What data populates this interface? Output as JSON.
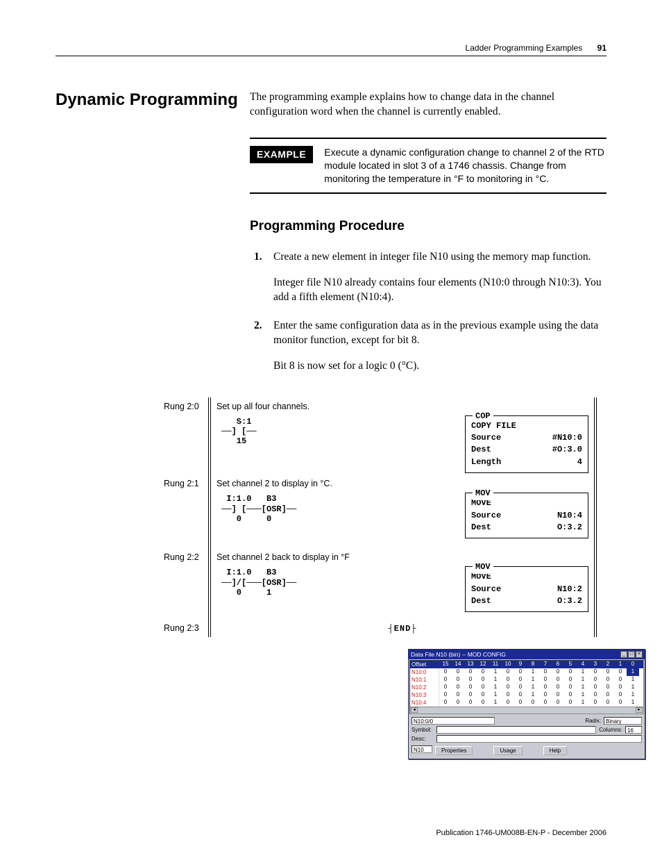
{
  "header": {
    "chapter": "Ladder Programming Examples",
    "page_number": "91"
  },
  "section_title": "Dynamic Programming",
  "intro": "The programming example explains how to change data in the channel configuration word when the channel is currently enabled.",
  "example": {
    "label": "EXAMPLE",
    "text": "Execute a dynamic configuration change to channel 2 of the RTD module located in slot 3 of a 1746 chassis. Change from monitoring the temperature in °F to monitoring in °C."
  },
  "procedure": {
    "title": "Programming Procedure",
    "steps": [
      {
        "text": "Create a new element in integer file N10 using the memory map function.",
        "detail": "Integer file N10 already contains four elements (N10:0 through N10:3). You add a fifth element (N10:4)."
      },
      {
        "text": "Enter the same configuration data as in the previous example using the data monitor function, except for bit 8.",
        "detail": "Bit 8 is now set for a logic 0 (°C)."
      }
    ]
  },
  "ladder": {
    "rungs": [
      {
        "label": "Rung 2:0",
        "comment": "Set up all four channels.",
        "contacts": "    S:1\n ──] [──\n    15",
        "instr": {
          "mnemonic": "COP",
          "title": "COPY FILE",
          "rows": [
            {
              "k": "Source",
              "v": "#N10:0"
            },
            {
              "k": "Dest",
              "v": "#O:3.0"
            },
            {
              "k": "Length",
              "v": "4"
            }
          ]
        }
      },
      {
        "label": "Rung 2:1",
        "comment": "Set channel 2 to display in °C.",
        "contacts": "  I:1.0   B3\n ──] [───[OSR]──\n    0     0",
        "instr": {
          "mnemonic": "MOV",
          "title": "MOVE",
          "rows": [
            {
              "k": "Source",
              "v": "N10:4"
            },
            {
              "k": "",
              "v": ""
            },
            {
              "k": "Dest",
              "v": "O:3.2"
            }
          ]
        }
      },
      {
        "label": "Rung 2:2",
        "comment": "Set channel 2 back to display in °F",
        "contacts": "  I:1.0   B3\n ──]/[───[OSR]──\n    0     1",
        "instr": {
          "mnemonic": "MOV",
          "title": "MOVE",
          "rows": [
            {
              "k": "Source",
              "v": "N10:2"
            },
            {
              "k": "",
              "v": ""
            },
            {
              "k": "Dest",
              "v": "O:3.2"
            }
          ]
        }
      }
    ],
    "end_label": "Rung 2:3",
    "end_text": "┤END├"
  },
  "datafile": {
    "title": "Data File N10 (bin) -- MOD CONFIG",
    "offset_header": "Offset",
    "bit_headers": [
      "15",
      "14",
      "13",
      "12",
      "11",
      "10",
      "9",
      "8",
      "7",
      "6",
      "5",
      "4",
      "3",
      "2",
      "1",
      "0"
    ],
    "rows": [
      {
        "offset": "N10:0",
        "bits": [
          "0",
          "0",
          "0",
          "0",
          "1",
          "0",
          "0",
          "1",
          "0",
          "0",
          "0",
          "1",
          "0",
          "0",
          "0",
          "1"
        ]
      },
      {
        "offset": "N10:1",
        "bits": [
          "0",
          "0",
          "0",
          "0",
          "1",
          "0",
          "0",
          "1",
          "0",
          "0",
          "0",
          "1",
          "0",
          "0",
          "0",
          "1"
        ]
      },
      {
        "offset": "N10:2",
        "bits": [
          "0",
          "0",
          "0",
          "0",
          "1",
          "0",
          "0",
          "1",
          "0",
          "0",
          "0",
          "1",
          "0",
          "0",
          "0",
          "1"
        ]
      },
      {
        "offset": "N10:3",
        "bits": [
          "0",
          "0",
          "0",
          "0",
          "1",
          "0",
          "0",
          "1",
          "0",
          "0",
          "0",
          "1",
          "0",
          "0",
          "0",
          "1"
        ]
      },
      {
        "offset": "N10:4",
        "bits": [
          "0",
          "0",
          "0",
          "0",
          "1",
          "0",
          "0",
          "0",
          "0",
          "0",
          "0",
          "1",
          "0",
          "0",
          "0",
          "1"
        ]
      }
    ],
    "addr_value": "N10:0/0",
    "radix_label": "Radix:",
    "radix_value": "Binary",
    "symbol_label": "Symbol:",
    "desc_label": "Desc:",
    "columns_label": "Columns:",
    "columns_value": "16",
    "file_label": "N10",
    "buttons": {
      "properties": "Properties",
      "usage": "Usage",
      "help": "Help"
    }
  },
  "footer": "Publication 1746-UM008B-EN-P - December 2006",
  "colors": {
    "page_bg": "#ffffff",
    "text": "#000000",
    "window_titlebar": "#1a2a90",
    "window_bg": "#c8ccd2",
    "offset_text": "#c02020"
  }
}
